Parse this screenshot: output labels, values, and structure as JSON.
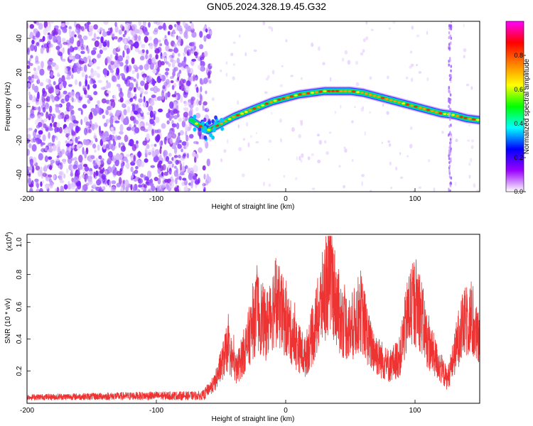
{
  "title": "GN05.2024.328.19.45.G32",
  "chart_data": [
    {
      "type": "heatmap",
      "xlabel": "Height of straight line (km)",
      "ylabel": "Frequency (Hz)",
      "xlim": [
        -200,
        150
      ],
      "ylim": [
        -50,
        50
      ],
      "xticks": [
        -200,
        -100,
        0,
        100
      ],
      "xtick_labels": [
        "-200",
        "-100",
        "0",
        "100"
      ],
      "yticks": [
        -40,
        -20,
        0,
        20,
        40
      ],
      "ytick_labels": [
        "-40",
        "-20",
        "0",
        "20",
        "40"
      ],
      "colorbar": {
        "label": "Normalized spectral amplitude",
        "range": [
          0,
          1
        ],
        "ticks": [
          0,
          0.2,
          0.4,
          0.6,
          0.8
        ],
        "tick_labels": [
          "0.0",
          "0.2",
          "0.4",
          "0.6",
          "0.8"
        ],
        "colors": [
          "#ffffff",
          "#9a00ff",
          "#0000ff",
          "#00ffff",
          "#00ff00",
          "#ffff00",
          "#ff8000",
          "#ff0000",
          "#ff00ff"
        ]
      },
      "noise_region_x": [
        -200,
        -62
      ],
      "ridge": [
        {
          "x": -73,
          "y": -8
        },
        {
          "x": -65,
          "y": -12
        },
        {
          "x": -60,
          "y": -14
        },
        {
          "x": -50,
          "y": -10
        },
        {
          "x": -40,
          "y": -6
        },
        {
          "x": -30,
          "y": -3
        },
        {
          "x": -20,
          "y": 0
        },
        {
          "x": -10,
          "y": 3
        },
        {
          "x": 0,
          "y": 5
        },
        {
          "x": 10,
          "y": 7
        },
        {
          "x": 20,
          "y": 8
        },
        {
          "x": 30,
          "y": 9
        },
        {
          "x": 40,
          "y": 9
        },
        {
          "x": 50,
          "y": 9
        },
        {
          "x": 60,
          "y": 8
        },
        {
          "x": 70,
          "y": 6
        },
        {
          "x": 80,
          "y": 4
        },
        {
          "x": 90,
          "y": 2
        },
        {
          "x": 100,
          "y": 0
        },
        {
          "x": 110,
          "y": -2
        },
        {
          "x": 120,
          "y": -4
        },
        {
          "x": 130,
          "y": -5
        },
        {
          "x": 140,
          "y": -7
        },
        {
          "x": 150,
          "y": -8
        }
      ],
      "vertical_streak_x": 127
    },
    {
      "type": "line",
      "xlabel": "Height of straight line (km)",
      "ylabel": "SNR (10 * v/v)",
      "multiplier_label": "(x10",
      "multiplier_exp": "4",
      "multiplier_close": ")",
      "xlim": [
        -200,
        150
      ],
      "ylim": [
        0,
        1.05
      ],
      "xticks": [
        -200,
        -100,
        0,
        100
      ],
      "xtick_labels": [
        "-200",
        "-100",
        "0",
        "100"
      ],
      "yticks": [
        0.2,
        0.4,
        0.6,
        0.8,
        1.0
      ],
      "ytick_labels": [
        "0.2",
        "0.4",
        "0.6",
        "0.8",
        "1.0"
      ],
      "color": "#ee3333",
      "envelope": [
        {
          "x": -200,
          "y": 0.04
        },
        {
          "x": -150,
          "y": 0.05
        },
        {
          "x": -100,
          "y": 0.06
        },
        {
          "x": -65,
          "y": 0.06
        },
        {
          "x": -55,
          "y": 0.15
        },
        {
          "x": -45,
          "y": 0.42
        },
        {
          "x": -38,
          "y": 0.25
        },
        {
          "x": -30,
          "y": 0.45
        },
        {
          "x": -22,
          "y": 0.7
        },
        {
          "x": -15,
          "y": 0.58
        },
        {
          "x": -8,
          "y": 0.78
        },
        {
          "x": 0,
          "y": 0.62
        },
        {
          "x": 8,
          "y": 0.45
        },
        {
          "x": 15,
          "y": 0.35
        },
        {
          "x": 22,
          "y": 0.55
        },
        {
          "x": 30,
          "y": 0.85
        },
        {
          "x": 35,
          "y": 0.95
        },
        {
          "x": 42,
          "y": 0.65
        },
        {
          "x": 50,
          "y": 0.55
        },
        {
          "x": 58,
          "y": 0.7
        },
        {
          "x": 65,
          "y": 0.45
        },
        {
          "x": 72,
          "y": 0.35
        },
        {
          "x": 80,
          "y": 0.28
        },
        {
          "x": 88,
          "y": 0.35
        },
        {
          "x": 95,
          "y": 0.7
        },
        {
          "x": 102,
          "y": 0.78
        },
        {
          "x": 110,
          "y": 0.45
        },
        {
          "x": 118,
          "y": 0.3
        },
        {
          "x": 125,
          "y": 0.18
        },
        {
          "x": 130,
          "y": 0.35
        },
        {
          "x": 135,
          "y": 0.55
        },
        {
          "x": 142,
          "y": 0.65
        },
        {
          "x": 150,
          "y": 0.45
        }
      ]
    }
  ]
}
